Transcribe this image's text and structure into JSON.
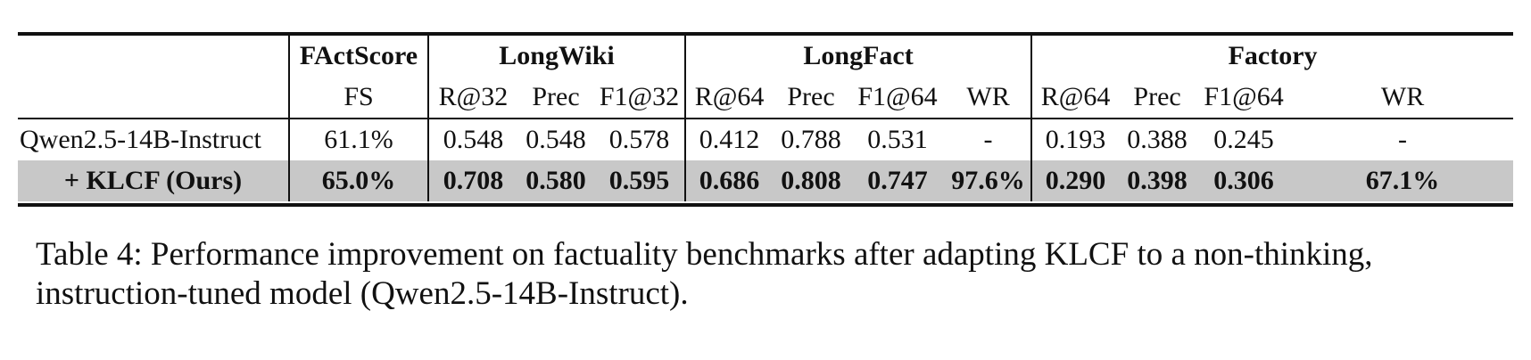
{
  "table": {
    "groups": {
      "factscore": "FActScore",
      "longwiki": "LongWiki",
      "longfact": "LongFact",
      "factory": "Factory"
    },
    "subheaders": [
      "FS",
      "R@32",
      "Prec",
      "F1@32",
      "R@64",
      "Prec",
      "F1@64",
      "WR",
      "R@64",
      "Prec",
      "F1@64",
      "WR"
    ],
    "rows": [
      {
        "model": "Qwen2.5-14B-Instruct",
        "values": [
          "61.1%",
          "0.548",
          "0.548",
          "0.578",
          "0.412",
          "0.788",
          "0.531",
          "-",
          "0.193",
          "0.388",
          "0.245",
          "-"
        ]
      },
      {
        "model": "+ KLCF (Ours)",
        "values": [
          "65.0%",
          "0.708",
          "0.580",
          "0.595",
          "0.686",
          "0.808",
          "0.747",
          "97.6%",
          "0.290",
          "0.398",
          "0.306",
          "67.1%"
        ]
      }
    ]
  },
  "caption": "Table 4: Performance improvement on factuality benchmarks after adapting KLCF to a non-thinking, instruction-tuned model (Qwen2.5-14B-Instruct)."
}
